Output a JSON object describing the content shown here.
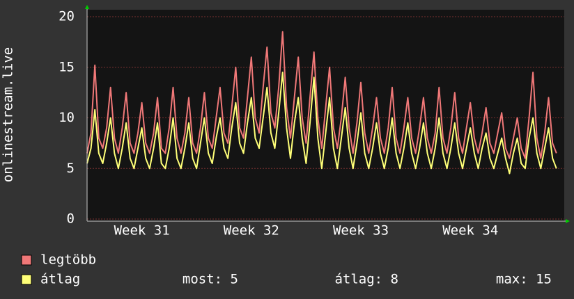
{
  "chart_data": {
    "type": "line",
    "ylabel": "onlinestream.live",
    "xlim": [
      0,
      30.5
    ],
    "xticks": [
      {
        "value": 3.5,
        "label": "Week 31"
      },
      {
        "value": 10.5,
        "label": "Week 32"
      },
      {
        "value": 17.5,
        "label": "Week 33"
      },
      {
        "value": 24.5,
        "label": "Week 34"
      }
    ],
    "ylim": [
      0,
      20
    ],
    "yticks": [
      0,
      5,
      10,
      15,
      20
    ],
    "grid": true,
    "x": [
      0,
      0.25,
      0.5,
      0.75,
      1,
      1.25,
      1.5,
      1.75,
      2,
      2.25,
      2.5,
      2.75,
      3,
      3.25,
      3.5,
      3.75,
      4,
      4.25,
      4.5,
      4.75,
      5,
      5.25,
      5.5,
      5.75,
      6,
      6.25,
      6.5,
      6.75,
      7,
      7.25,
      7.5,
      7.75,
      8,
      8.25,
      8.5,
      8.75,
      9,
      9.25,
      9.5,
      9.75,
      10,
      10.25,
      10.5,
      10.75,
      11,
      11.25,
      11.5,
      11.75,
      12,
      12.25,
      12.5,
      12.75,
      13,
      13.25,
      13.5,
      13.75,
      14,
      14.25,
      14.5,
      14.75,
      15,
      15.25,
      15.5,
      15.75,
      16,
      16.25,
      16.5,
      16.75,
      17,
      17.25,
      17.5,
      17.75,
      18,
      18.25,
      18.5,
      18.75,
      19,
      19.25,
      19.5,
      19.75,
      20,
      20.25,
      20.5,
      20.75,
      21,
      21.25,
      21.5,
      21.75,
      22,
      22.25,
      22.5,
      22.75,
      23,
      23.25,
      23.5,
      23.75,
      24,
      24.25,
      24.5,
      24.75,
      25,
      25.25,
      25.5,
      25.75,
      26,
      26.25,
      26.5,
      26.75,
      27,
      27.25,
      27.5,
      27.75,
      28,
      28.25,
      28.5,
      28.75,
      29,
      29.25,
      29.5,
      29.75,
      30
    ],
    "series": [
      {
        "name": "legtöbb",
        "color": "#f07878",
        "values": [
          6.5,
          8.5,
          15.2,
          8,
          7,
          9,
          13,
          8,
          6.5,
          9,
          12.5,
          7.5,
          6.5,
          8.5,
          11.5,
          7.5,
          6.5,
          8.5,
          12,
          7,
          6.5,
          9,
          13,
          8,
          6.5,
          8.5,
          12,
          7.5,
          6.5,
          9,
          12.5,
          8,
          7,
          10,
          13,
          8.5,
          7.5,
          11,
          15,
          9,
          8,
          12,
          16,
          10,
          8.5,
          13,
          17,
          10.5,
          9,
          13,
          18.5,
          11,
          8,
          12,
          16,
          10,
          7.5,
          12,
          16.5,
          10,
          7,
          11,
          15,
          9,
          7,
          10,
          14,
          9,
          6.5,
          9.5,
          13.5,
          8.5,
          6.5,
          9,
          12,
          8,
          6.5,
          9,
          13,
          8,
          6.5,
          9,
          12,
          8,
          6.5,
          9,
          12,
          8,
          6.5,
          8.5,
          13,
          8,
          6.5,
          9,
          12.5,
          8,
          6.5,
          9,
          11.5,
          8,
          6.5,
          8.5,
          11,
          7.5,
          6.5,
          8.5,
          10.5,
          7,
          6,
          8,
          10,
          7,
          6,
          10,
          14.5,
          8,
          6,
          8.5,
          12,
          7.5,
          6.5
        ]
      },
      {
        "name": "átlag",
        "color": "#ffff78",
        "values": [
          5.5,
          7,
          10.8,
          6.5,
          5.5,
          7.5,
          10,
          6.5,
          5,
          7,
          9.5,
          6,
          5,
          7,
          9,
          6,
          5,
          7,
          9.5,
          5.5,
          5,
          7,
          10,
          6,
          5,
          7,
          9.5,
          6,
          5,
          7.5,
          10,
          6.5,
          5.5,
          8,
          10,
          7,
          6,
          9,
          11.5,
          7.5,
          6.5,
          9.5,
          12,
          8,
          7,
          10,
          13,
          8.5,
          7,
          10.5,
          14.5,
          9,
          6,
          9.5,
          12,
          8,
          5.5,
          9.5,
          14,
          8,
          5,
          8.5,
          12,
          7,
          5,
          8,
          11,
          7,
          5,
          7.5,
          10.5,
          6.5,
          5,
          7,
          9.5,
          6.5,
          5,
          7,
          10,
          6.5,
          5,
          7,
          9.5,
          6.5,
          5,
          7,
          9.5,
          6.5,
          5,
          7,
          10,
          6.5,
          5,
          7,
          9.5,
          6.5,
          5,
          7,
          9,
          6.5,
          5,
          7,
          8.5,
          6,
          5,
          6.5,
          8,
          6,
          4.5,
          6.5,
          8,
          5.5,
          5,
          8,
          10,
          6.5,
          5,
          7,
          9,
          6,
          5
        ]
      }
    ],
    "stats": [
      "most: 5",
      "átlag: 8",
      "max: 15"
    ]
  }
}
